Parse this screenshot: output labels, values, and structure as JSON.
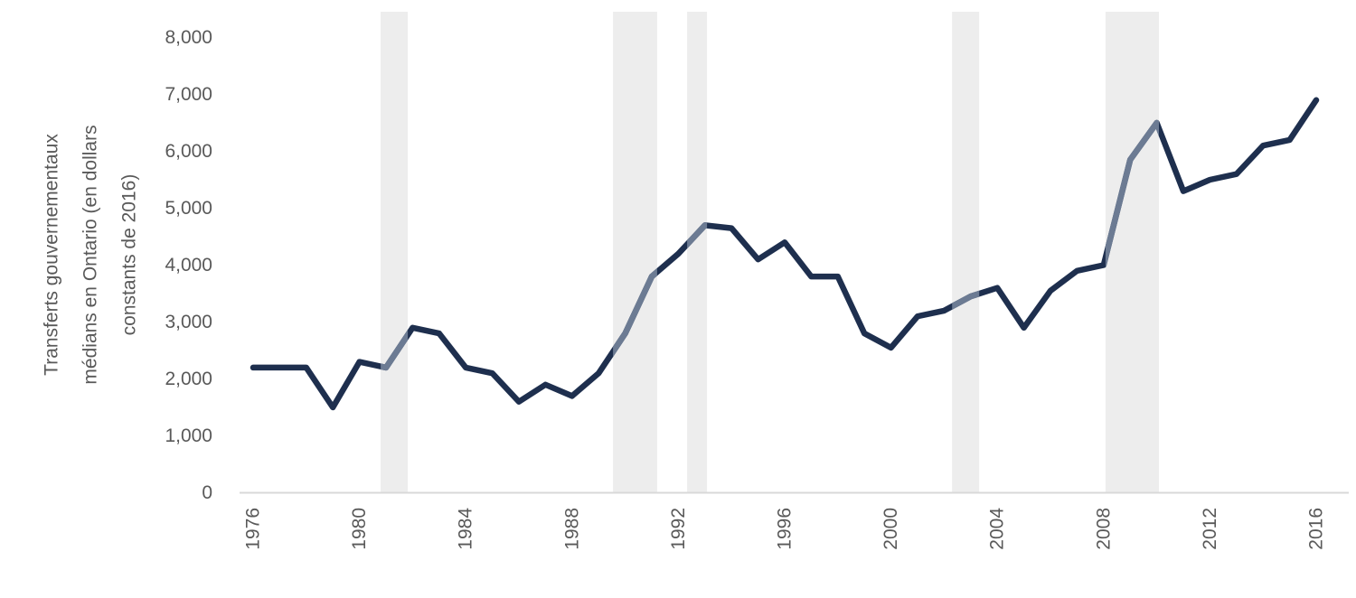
{
  "chart_data": {
    "type": "line",
    "title": "",
    "ylabel": "Transferts gouvernementaux médians en Ontario (en dollars constants de 2016)",
    "ylabel_lines": [
      "Transferts gouvernementaux",
      "médians en Ontario (en dollars",
      "constants de 2016)"
    ],
    "x": [
      1976,
      1977,
      1978,
      1979,
      1980,
      1981,
      1982,
      1983,
      1984,
      1985,
      1986,
      1987,
      1988,
      1989,
      1990,
      1991,
      1992,
      1993,
      1994,
      1995,
      1996,
      1997,
      1998,
      1999,
      2000,
      2001,
      2002,
      2003,
      2004,
      2005,
      2006,
      2007,
      2008,
      2009,
      2010,
      2011,
      2012,
      2013,
      2014,
      2015,
      2016
    ],
    "series": [
      {
        "name": "Transferts gouvernementaux médians en Ontario (en dollars constants de 2016)",
        "values": [
          2200,
          2200,
          2200,
          1500,
          2300,
          2200,
          2900,
          2800,
          2200,
          2100,
          1600,
          1900,
          1700,
          2100,
          2800,
          3800,
          4200,
          4700,
          4650,
          4100,
          4400,
          3800,
          3800,
          2800,
          2550,
          3100,
          3200,
          3450,
          3600,
          2900,
          3550,
          3900,
          4000,
          5850,
          6500,
          5300,
          5500,
          5600,
          6100,
          6200,
          6900
        ]
      }
    ],
    "xlim": [
      1976,
      2016
    ],
    "ylim": [
      0,
      8000
    ],
    "grid": false,
    "legend": "none",
    "y_ticks": [
      {
        "value": 0,
        "label": "0"
      },
      {
        "value": 1000,
        "label": "1,000"
      },
      {
        "value": 2000,
        "label": "2,000"
      },
      {
        "value": 3000,
        "label": "3,000"
      },
      {
        "value": 4000,
        "label": "4,000"
      },
      {
        "value": 5000,
        "label": "5,000"
      },
      {
        "value": 6000,
        "label": "6,000"
      },
      {
        "value": 7000,
        "label": "7,000"
      },
      {
        "value": 8000,
        "label": "8,000"
      }
    ],
    "x_ticks": [
      {
        "value": 1976,
        "label": "1976"
      },
      {
        "value": 1980,
        "label": "1980"
      },
      {
        "value": 1984,
        "label": "1984"
      },
      {
        "value": 1988,
        "label": "1988"
      },
      {
        "value": 1992,
        "label": "1992"
      },
      {
        "value": 1996,
        "label": "1996"
      },
      {
        "value": 2000,
        "label": "2000"
      },
      {
        "value": 2004,
        "label": "2004"
      },
      {
        "value": 2008,
        "label": "2008"
      },
      {
        "value": 2012,
        "label": "2012"
      },
      {
        "value": 2016,
        "label": "2016"
      }
    ],
    "recession_bands": [
      {
        "from": 1980.8,
        "to": 1981.82
      },
      {
        "from": 1989.54,
        "to": 1991.2
      },
      {
        "from": 1992.33,
        "to": 1993.08
      },
      {
        "from": 2002.3,
        "to": 2003.32
      },
      {
        "from": 2008.07,
        "to": 2010.08
      }
    ],
    "colors": {
      "line": "#1e2f4e",
      "line_in_band": "#6c7b93",
      "band": "#ededed",
      "axis_line": "#d9d9d9",
      "tick_text": "#595959",
      "background": "#ffffff"
    }
  }
}
